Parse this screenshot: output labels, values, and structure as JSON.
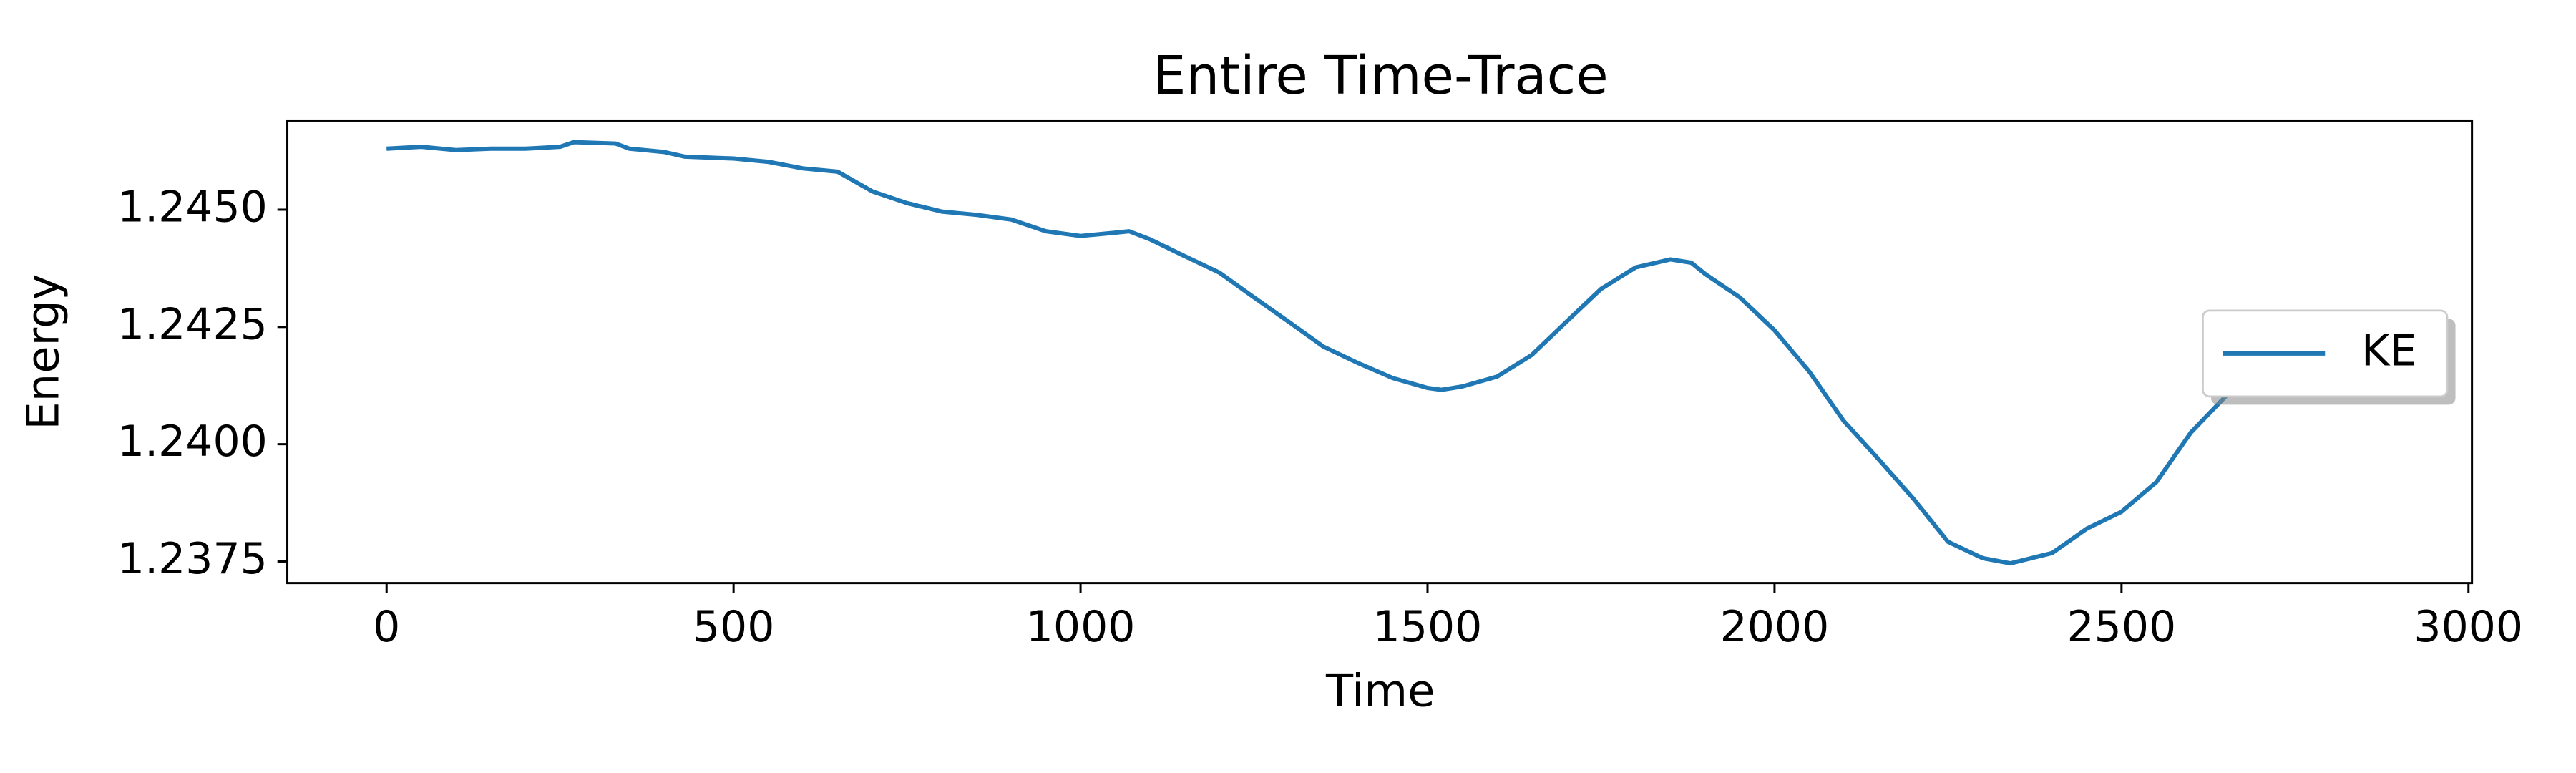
{
  "chart_data": {
    "type": "line",
    "title": "Entire Time-Trace",
    "x_label": "Time",
    "y_label": "Energy",
    "x": [
      0,
      50,
      100,
      150,
      200,
      250,
      270,
      330,
      350,
      400,
      430,
      500,
      550,
      600,
      650,
      700,
      750,
      800,
      850,
      900,
      950,
      1000,
      1050,
      1070,
      1100,
      1150,
      1200,
      1250,
      1300,
      1350,
      1400,
      1450,
      1500,
      1520,
      1550,
      1600,
      1650,
      1700,
      1750,
      1800,
      1850,
      1880,
      1900,
      1950,
      2000,
      2050,
      2100,
      2150,
      2200,
      2250,
      2300,
      2340,
      2400,
      2450,
      2500,
      2550,
      2600,
      2650,
      2700,
      2750,
      2800,
      2860
    ],
    "series": [
      {
        "name": "KE",
        "color": "#1f77b4",
        "values": [
          1.2463,
          1.24634,
          1.24627,
          1.2463,
          1.2463,
          1.24634,
          1.24644,
          1.24641,
          1.2463,
          1.24623,
          1.24613,
          1.24609,
          1.24602,
          1.24588,
          1.24581,
          1.24539,
          1.24514,
          1.24496,
          1.24489,
          1.24479,
          1.24454,
          1.24444,
          1.24451,
          1.24454,
          1.24437,
          1.24401,
          1.24366,
          1.24313,
          1.24261,
          1.24208,
          1.24173,
          1.24141,
          1.2412,
          1.24116,
          1.24123,
          1.24144,
          1.2419,
          1.24261,
          1.24331,
          1.24377,
          1.24394,
          1.24387,
          1.24363,
          1.24313,
          1.24243,
          1.24155,
          1.24049,
          1.23968,
          1.23884,
          1.23792,
          1.23757,
          1.23746,
          1.23768,
          1.2382,
          1.23856,
          1.23919,
          1.24025,
          1.24102,
          1.24144,
          1.2418,
          1.24208,
          1.24225
        ]
      }
    ],
    "xlim": [
      -143,
      3005
    ],
    "ylim": [
      1.23704,
      1.2469
    ],
    "xticks": [
      0,
      500,
      1000,
      1500,
      2000,
      2500,
      3000
    ],
    "yticks": [
      1.2375,
      {
        "value": 1.24,
        "label": "1.2400"
      },
      1.2425,
      {
        "value": 1.245,
        "label": "1.2450"
      }
    ],
    "legend": "center right",
    "grid": false
  }
}
